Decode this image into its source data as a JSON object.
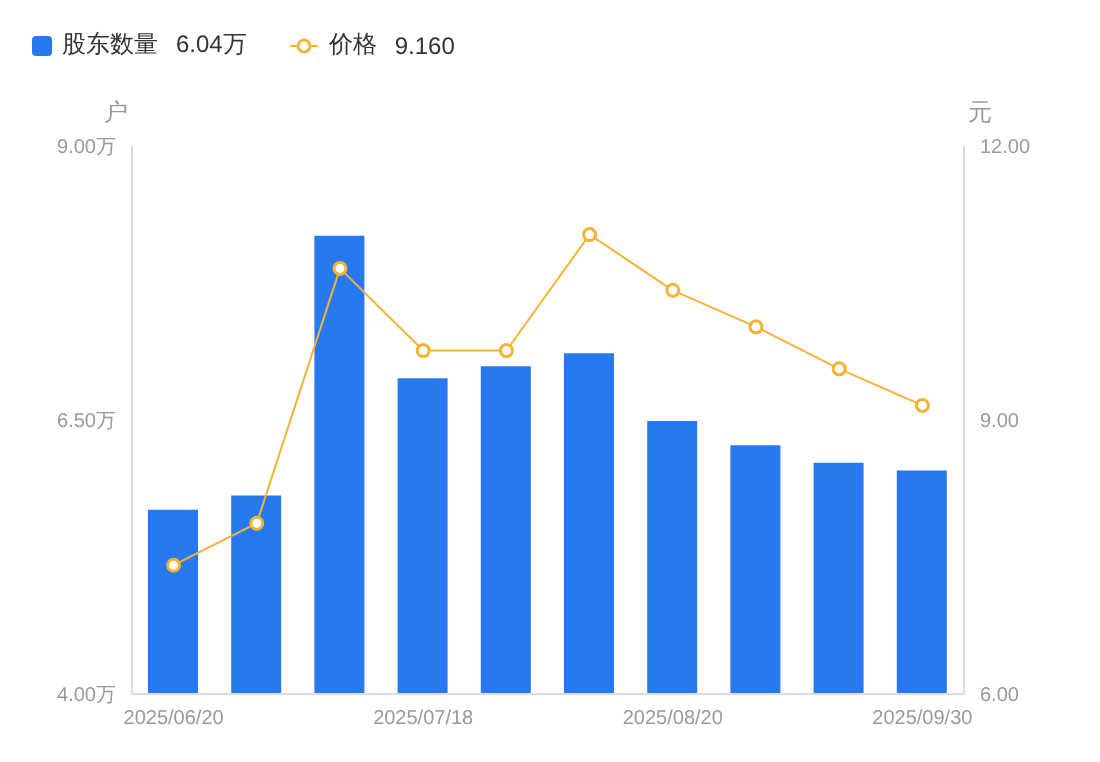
{
  "chart_data": {
    "type": "bar",
    "ylabel": "户",
    "y2label": "元",
    "categories": [
      "2025/06/20",
      null,
      null,
      "2025/07/18",
      null,
      null,
      "2025/08/20",
      null,
      null,
      "2025/09/30"
    ],
    "series": [
      {
        "name": "股东数量",
        "color": "#2878f0",
        "values": [
          5.68,
          5.81,
          8.18,
          6.88,
          6.99,
          7.11,
          6.49,
          6.27,
          6.11,
          6.04
        ]
      },
      {
        "name": "价格",
        "type": "line",
        "axis": "y2",
        "color": "#f5b335",
        "marker": "circle",
        "values": [
          7.41,
          7.87,
          10.66,
          9.76,
          9.76,
          11.03,
          10.42,
          10.02,
          9.56,
          9.16
        ]
      }
    ],
    "annotations": [
      "6.04万",
      "9.160"
    ],
    "ylim": [
      4,
      9
    ],
    "yticks": [
      {
        "value": 4,
        "label": "4.00万"
      },
      {
        "value": 6.5,
        "label": "6.50万"
      },
      {
        "value": 9,
        "label": "9.00万"
      }
    ],
    "y2lim": [
      6,
      12
    ],
    "y2ticks": [
      {
        "value": 6,
        "label": "6.00"
      },
      {
        "value": 9,
        "label": "9.00"
      },
      {
        "value": 12,
        "label": "12.00"
      }
    ],
    "grid": false,
    "legend": "top left"
  }
}
